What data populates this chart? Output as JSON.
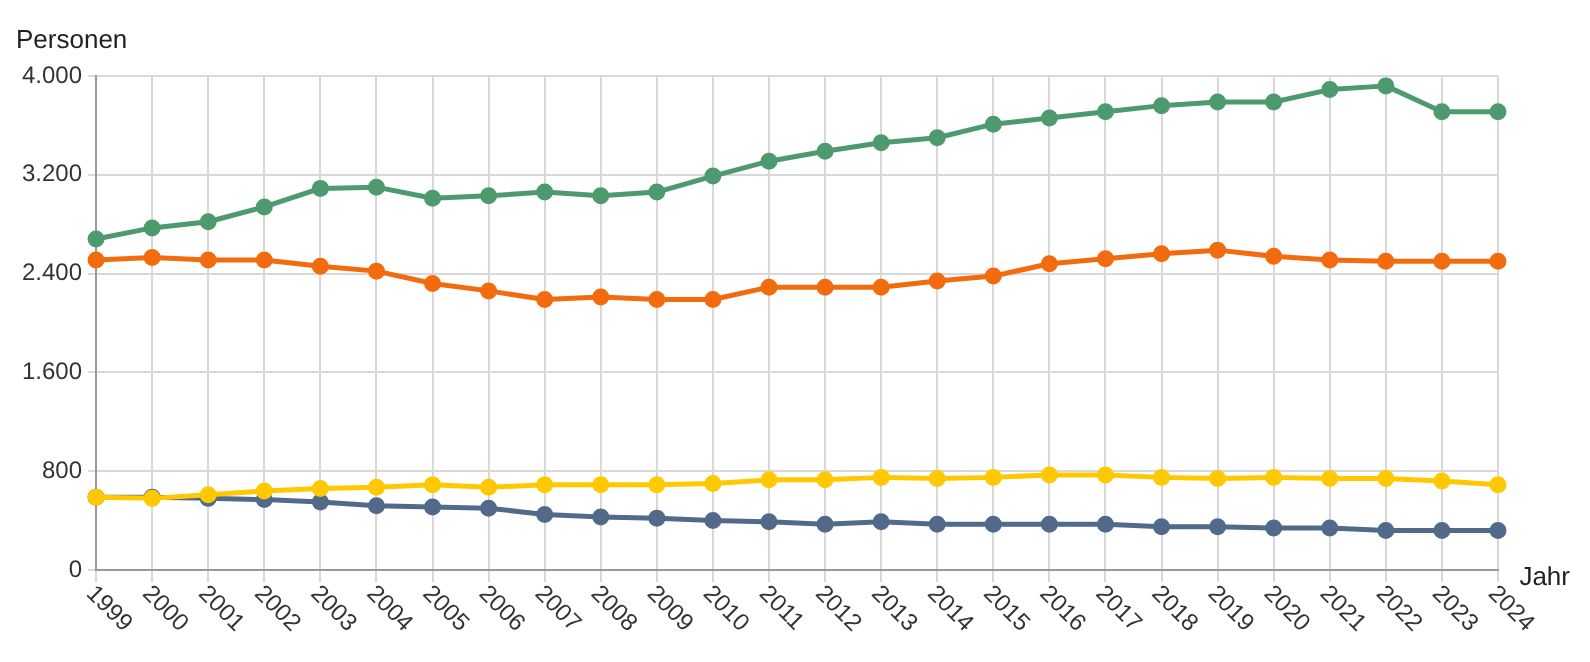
{
  "chart_data": {
    "type": "line",
    "ylabel": "Personen",
    "xlabel": "Jahr",
    "categories": [
      "1999",
      "2000",
      "2001",
      "2002",
      "2003",
      "2004",
      "2005",
      "2006",
      "2007",
      "2008",
      "2009",
      "2010",
      "2011",
      "2012",
      "2013",
      "2014",
      "2015",
      "2016",
      "2017",
      "2018",
      "2019",
      "2020",
      "2021",
      "2022",
      "2023",
      "2024"
    ],
    "series": [
      {
        "color": "#4e9a6f",
        "values": [
          2680,
          2770,
          2820,
          2940,
          3090,
          3100,
          3010,
          3030,
          3060,
          3030,
          3060,
          3190,
          3310,
          3390,
          3460,
          3500,
          3610,
          3660,
          3710,
          3760,
          3790,
          3790,
          3890,
          3920,
          3710,
          3710
        ]
      },
      {
        "color": "#f26b0f",
        "values": [
          2510,
          2530,
          2510,
          2510,
          2460,
          2420,
          2320,
          2260,
          2190,
          2210,
          2190,
          2190,
          2290,
          2290,
          2290,
          2340,
          2380,
          2480,
          2520,
          2560,
          2590,
          2540,
          2510,
          2500,
          2500,
          2500
        ]
      },
      {
        "color": "#ffc800",
        "values": [
          590,
          580,
          610,
          640,
          660,
          670,
          690,
          670,
          690,
          690,
          690,
          700,
          730,
          730,
          750,
          740,
          750,
          770,
          770,
          750,
          740,
          750,
          740,
          740,
          720,
          690
        ]
      },
      {
        "color": "#526a8a",
        "values": [
          590,
          590,
          580,
          570,
          550,
          520,
          510,
          500,
          450,
          430,
          420,
          400,
          390,
          370,
          390,
          370,
          370,
          370,
          370,
          350,
          350,
          340,
          340,
          320,
          320,
          320
        ]
      }
    ],
    "ylim": [
      0,
      4000
    ],
    "yticks": [
      {
        "value": 0,
        "label": "0"
      },
      {
        "value": 800,
        "label": "800"
      },
      {
        "value": 1600,
        "label": "1.600"
      },
      {
        "value": 2400,
        "label": "2.400"
      },
      {
        "value": 3200,
        "label": "3.200"
      },
      {
        "value": 4000,
        "label": "4.000"
      }
    ],
    "grid": true,
    "legend": false,
    "marker": "circle",
    "line_style": "solid"
  }
}
